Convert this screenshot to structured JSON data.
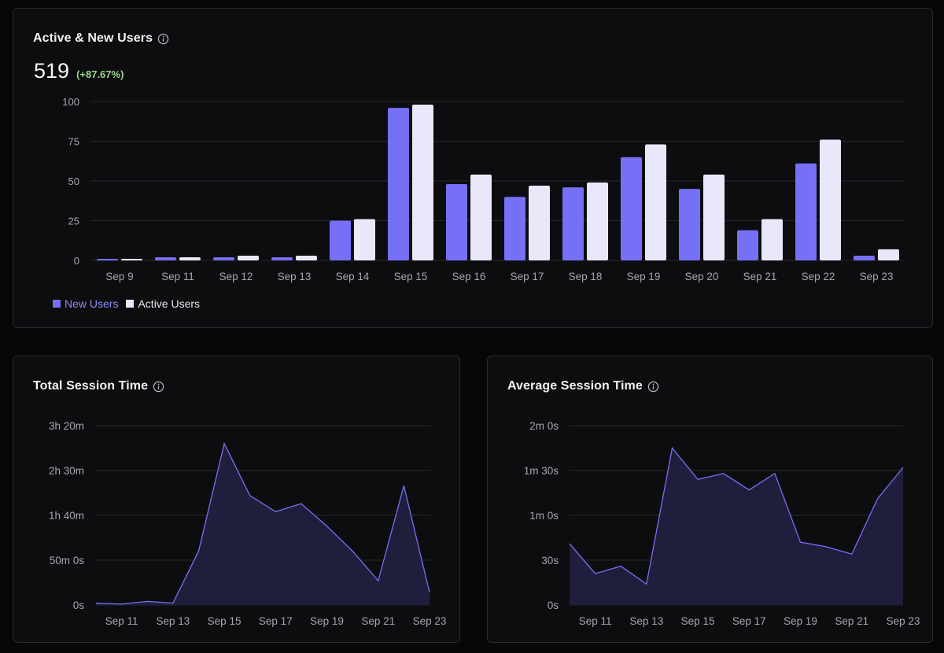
{
  "active_users_card": {
    "title": "Active & New Users",
    "value": "519",
    "delta": "(+87.67%)",
    "info_icon": "info-icon",
    "legend": [
      {
        "label": "New Users",
        "color": "#7570f5"
      },
      {
        "label": "Active Users",
        "color": "#e9e8fa"
      }
    ]
  },
  "total_session_card": {
    "title": "Total Session Time",
    "info_icon": "info-icon"
  },
  "avg_session_card": {
    "title": "Average Session Time",
    "info_icon": "info-icon"
  },
  "chart_data": [
    {
      "type": "bar",
      "title": "Active & New Users",
      "categories": [
        "Sep 9",
        "Sep 11",
        "Sep 12",
        "Sep 13",
        "Sep 14",
        "Sep 15",
        "Sep 16",
        "Sep 17",
        "Sep 18",
        "Sep 19",
        "Sep 20",
        "Sep 21",
        "Sep 22",
        "Sep 23"
      ],
      "series": [
        {
          "name": "New Users",
          "color": "#7570f5",
          "values": [
            1,
            2,
            2,
            2,
            25,
            96,
            48,
            40,
            46,
            65,
            45,
            19,
            61,
            3
          ]
        },
        {
          "name": "Active Users",
          "color": "#e9e8fa",
          "values": [
            1,
            2,
            3,
            3,
            26,
            98,
            54,
            47,
            49,
            73,
            54,
            26,
            76,
            7
          ]
        }
      ],
      "yticks": [
        0,
        25,
        50,
        75,
        100
      ],
      "ylim": [
        0,
        100
      ],
      "grid": true,
      "legend_position": "bottom-left"
    },
    {
      "type": "area",
      "title": "Total Session Time",
      "x_tick_labels": [
        "Sep 11",
        "Sep 13",
        "Sep 15",
        "Sep 17",
        "Sep 19",
        "Sep 21",
        "Sep 23"
      ],
      "x": [
        "Sep 10",
        "Sep 11",
        "Sep 12",
        "Sep 13",
        "Sep 14",
        "Sep 15",
        "Sep 16",
        "Sep 17",
        "Sep 18",
        "Sep 19",
        "Sep 20",
        "Sep 21",
        "Sep 22",
        "Sep 23"
      ],
      "y_minutes": [
        2,
        1,
        4,
        2,
        60,
        180,
        122,
        104,
        113,
        88,
        60,
        27,
        133,
        14
      ],
      "yticks_minutes": [
        0,
        50,
        100,
        150,
        200
      ],
      "ytick_labels": [
        "0s",
        "50m 0s",
        "1h 40m",
        "2h 30m",
        "3h 20m"
      ],
      "ylim_minutes": [
        0,
        200
      ],
      "line_color": "#7570f5",
      "fill_color": "#1f1e3c",
      "grid": true
    },
    {
      "type": "area",
      "title": "Average Session Time",
      "x_tick_labels": [
        "Sep 11",
        "Sep 13",
        "Sep 15",
        "Sep 17",
        "Sep 19",
        "Sep 21",
        "Sep 23"
      ],
      "x": [
        "Sep 10",
        "Sep 11",
        "Sep 12",
        "Sep 13",
        "Sep 14",
        "Sep 15",
        "Sep 16",
        "Sep 17",
        "Sep 18",
        "Sep 19",
        "Sep 20",
        "Sep 21",
        "Sep 22",
        "Sep 23"
      ],
      "y_seconds": [
        41,
        21,
        26,
        14,
        105,
        84,
        88,
        77,
        88,
        42,
        39,
        34,
        71,
        92
      ],
      "yticks_seconds": [
        0,
        30,
        60,
        90,
        120
      ],
      "ytick_labels": [
        "0s",
        "30s",
        "1m 0s",
        "1m 30s",
        "2m 0s"
      ],
      "ylim_seconds": [
        0,
        120
      ],
      "line_color": "#7570f5",
      "fill_color": "#1f1e3c",
      "grid": true
    }
  ]
}
